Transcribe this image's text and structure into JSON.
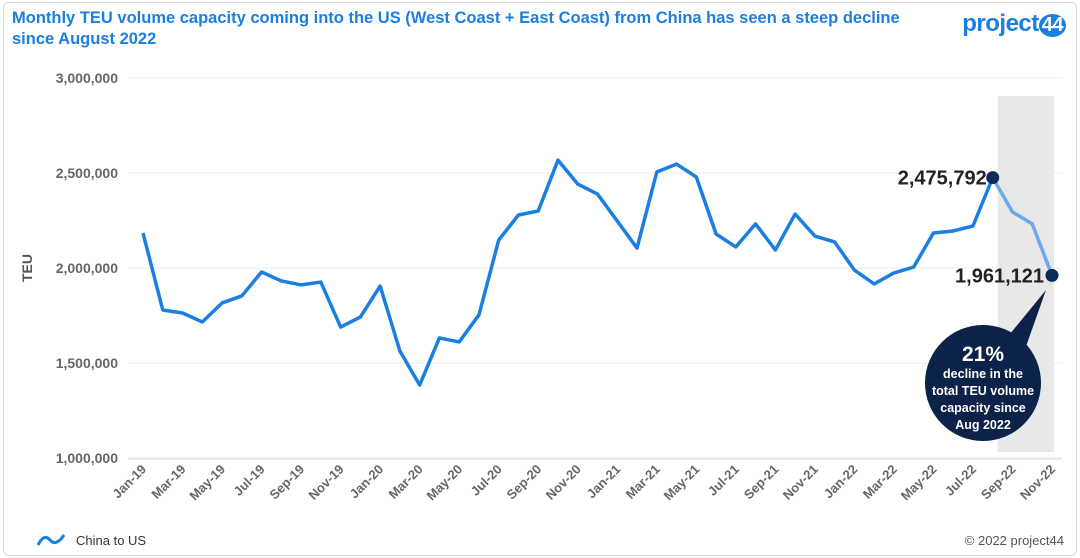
{
  "header": {
    "title": "Monthly TEU volume capacity coming into the US (West Coast + East Coast) from China has seen a steep decline since August 2022",
    "logo": "project44"
  },
  "footer": {
    "copyright": "© 2022 project44"
  },
  "colors": {
    "line": "#1a7fe0",
    "highlight_line": "#6aa9ea",
    "marker": "#0d2b5a",
    "callout": "#0d2248",
    "shade": "#e8e8e8"
  },
  "chart_data": {
    "type": "line",
    "title": "",
    "xlabel": "",
    "ylabel": "TEU",
    "ylim": [
      1000000,
      3000000
    ],
    "yticks": [
      "1,000,000",
      "1,500,000",
      "2,000,000",
      "2,500,000",
      "3,000,000"
    ],
    "grid": true,
    "legend": "bottom-left",
    "x": [
      "Jan-19",
      "Feb-19",
      "Mar-19",
      "Apr-19",
      "May-19",
      "Jun-19",
      "Jul-19",
      "Aug-19",
      "Sep-19",
      "Oct-19",
      "Nov-19",
      "Dec-19",
      "Jan-20",
      "Feb-20",
      "Mar-20",
      "Apr-20",
      "May-20",
      "Jun-20",
      "Jul-20",
      "Aug-20",
      "Sep-20",
      "Oct-20",
      "Nov-20",
      "Dec-20",
      "Jan-21",
      "Feb-21",
      "Mar-21",
      "Apr-21",
      "May-21",
      "Jun-21",
      "Jul-21",
      "Aug-21",
      "Sep-21",
      "Oct-21",
      "Nov-21",
      "Dec-21",
      "Jan-22",
      "Feb-22",
      "Mar-22",
      "Apr-22",
      "May-22",
      "Jun-22",
      "Jul-22",
      "Aug-22",
      "Sep-22",
      "Oct-22",
      "Nov-22"
    ],
    "xtick_labels": [
      "Jan-19",
      "Mar-19",
      "May-19",
      "Jul-19",
      "Sep-19",
      "Nov-19",
      "Jan-20",
      "Mar-20",
      "May-20",
      "Jul-20",
      "Sep-20",
      "Nov-20",
      "Jan-21",
      "Mar-21",
      "May-21",
      "Jul-21",
      "Sep-21",
      "Nov-21",
      "Jan-22",
      "Mar-22",
      "May-22",
      "Jul-22",
      "Sep-22",
      "Nov-22"
    ],
    "series": [
      {
        "name": "China to US",
        "values": [
          2184000,
          1779000,
          1763000,
          1716000,
          1816000,
          1853000,
          1979000,
          1932000,
          1911000,
          1926000,
          1689000,
          1742000,
          1905000,
          1563000,
          1384000,
          1632000,
          1611000,
          1753000,
          2147000,
          2279000,
          2300000,
          2568000,
          2442000,
          2389000,
          2247000,
          2105000,
          2505000,
          2547000,
          2479000,
          2179000,
          2111000,
          2232000,
          2095000,
          2284000,
          2168000,
          2137000,
          1989000,
          1916000,
          1974000,
          2005000,
          2184000,
          2195000,
          2221000,
          2475792,
          2295000,
          2232000,
          1961121
        ]
      }
    ],
    "annotations": [
      {
        "x": "Aug-22",
        "label": "2,475,792"
      },
      {
        "x": "Nov-22",
        "label": "1,961,121"
      },
      {
        "callout_big": "21%",
        "callout_lines": [
          "decline in the",
          "total TEU volume",
          "capacity since",
          "Aug 2022"
        ]
      }
    ],
    "highlight_range": [
      "Aug-22",
      "Nov-22"
    ]
  }
}
